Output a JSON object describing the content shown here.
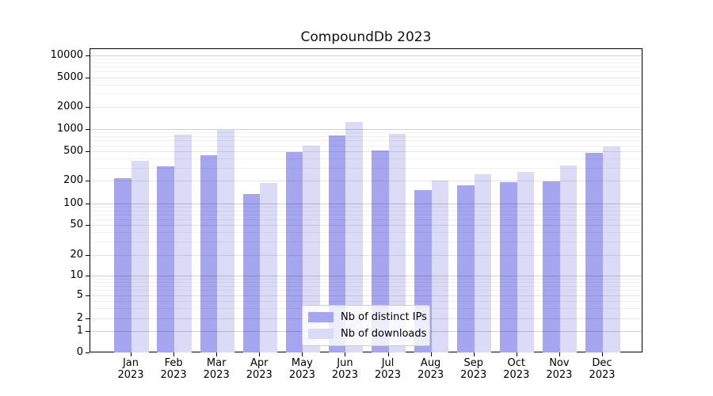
{
  "title": "CompoundDb 2023",
  "colors": {
    "ips_bar": "#a6a6f0",
    "downloads_bar": "#dbdbf8",
    "axis": "#000000",
    "legend_border": "#cccccc"
  },
  "legend": {
    "items": [
      {
        "label": "Nb of distinct IPs",
        "series": "ips"
      },
      {
        "label": "Nb of downloads",
        "series": "downloads"
      }
    ]
  },
  "chart_data": {
    "type": "bar",
    "title": "CompoundDb 2023",
    "categories": [
      "Jan 2023",
      "Feb 2023",
      "Mar 2023",
      "Apr 2023",
      "May 2023",
      "Jun 2023",
      "Jul 2023",
      "Aug 2023",
      "Sep 2023",
      "Oct 2023",
      "Nov 2023",
      "Dec 2023"
    ],
    "series": [
      {
        "name": "Nb of distinct IPs",
        "values": [
          225,
          320,
          455,
          135,
          500,
          840,
          530,
          155,
          180,
          195,
          200,
          490
        ]
      },
      {
        "name": "Nb of downloads",
        "values": [
          380,
          850,
          1000,
          190,
          610,
          1270,
          870,
          205,
          250,
          270,
          330,
          595
        ]
      }
    ],
    "xlabel": "",
    "ylabel": "",
    "yscale": "symlog",
    "ylim": [
      0,
      13000
    ],
    "yticks": [
      0,
      1,
      2,
      5,
      10,
      20,
      50,
      100,
      200,
      500,
      1000,
      2000,
      5000,
      10000
    ],
    "grid": "both",
    "legend_position": "lower center"
  }
}
